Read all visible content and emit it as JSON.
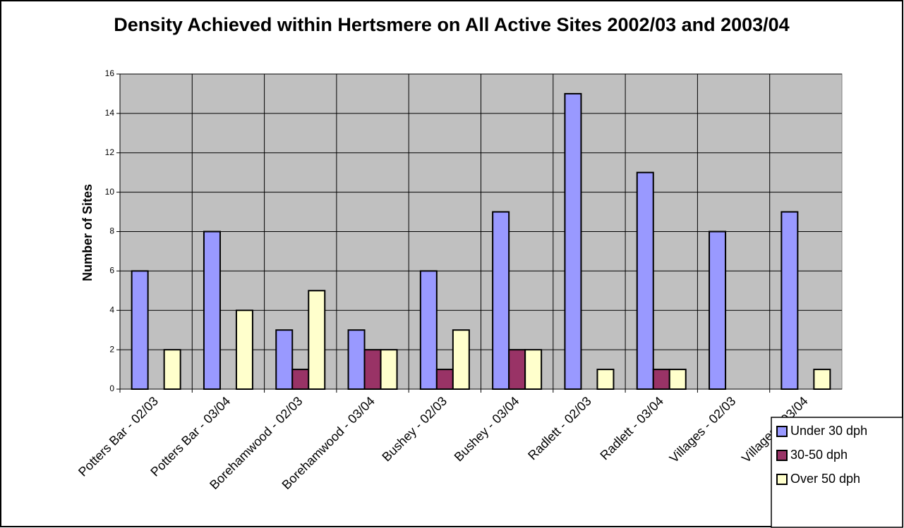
{
  "chart_data": {
    "type": "bar",
    "title": "Density Achieved within Hertsmere on All Active Sites 2002/03 and 2003/04",
    "y_label": "Number of Sites",
    "categories": [
      "Potters Bar - 02/03",
      "Potters Bar - 03/04",
      "Borehamwood - 02/03",
      "Borehamwood - 03/04",
      "Bushey - 02/03",
      "Bushey - 03/04",
      "Radlett - 02/03",
      "Radlett - 03/04",
      "Villages - 02/03",
      "Villages - 03/04"
    ],
    "series": [
      {
        "name": "Under 30 dph",
        "color": "#9999ff",
        "values": [
          6,
          8,
          3,
          3,
          6,
          9,
          15,
          11,
          8,
          9
        ]
      },
      {
        "name": "30-50 dph",
        "color": "#993366",
        "values": [
          0,
          0,
          1,
          2,
          1,
          2,
          0,
          1,
          0,
          0
        ]
      },
      {
        "name": "Over 50 dph",
        "color": "#ffffcc",
        "values": [
          2,
          4,
          5,
          2,
          3,
          2,
          1,
          1,
          0,
          1
        ]
      }
    ],
    "ylim": [
      0,
      16
    ],
    "yticks": [
      0,
      2,
      4,
      6,
      8,
      10,
      12,
      14,
      16
    ],
    "grid": true,
    "legend": "bottom-right"
  }
}
